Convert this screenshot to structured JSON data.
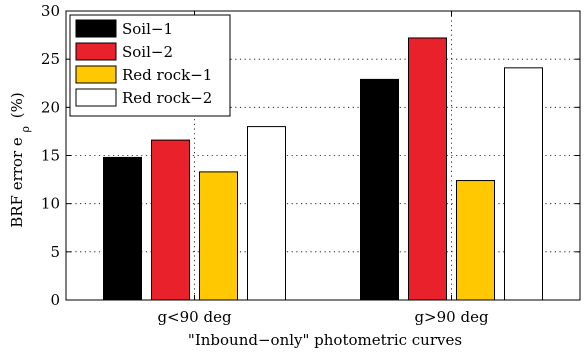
{
  "chart_data": {
    "type": "bar",
    "xlabel": "\"Inbound−only\" photometric curves",
    "ylabel": "BRF error e",
    "ylabel_subscript": "ρ",
    "ylabel_unit": "(%)",
    "categories": [
      "g<90 deg",
      "g>90 deg"
    ],
    "ylim": [
      0,
      30
    ],
    "yticks": [
      0,
      5,
      10,
      15,
      20,
      25,
      30
    ],
    "grid": true,
    "legend_position": "top-left",
    "series": [
      {
        "name": "Soil−1",
        "color": "#000000",
        "values": [
          14.8,
          22.9
        ]
      },
      {
        "name": "Soil−2",
        "color": "#e8212b",
        "values": [
          16.6,
          27.2
        ]
      },
      {
        "name": "Red rock−1",
        "color": "#ffc800",
        "values": [
          13.3,
          12.4
        ]
      },
      {
        "name": "Red rock−2",
        "color": "#ffffff",
        "values": [
          18.0,
          24.1
        ]
      }
    ]
  }
}
